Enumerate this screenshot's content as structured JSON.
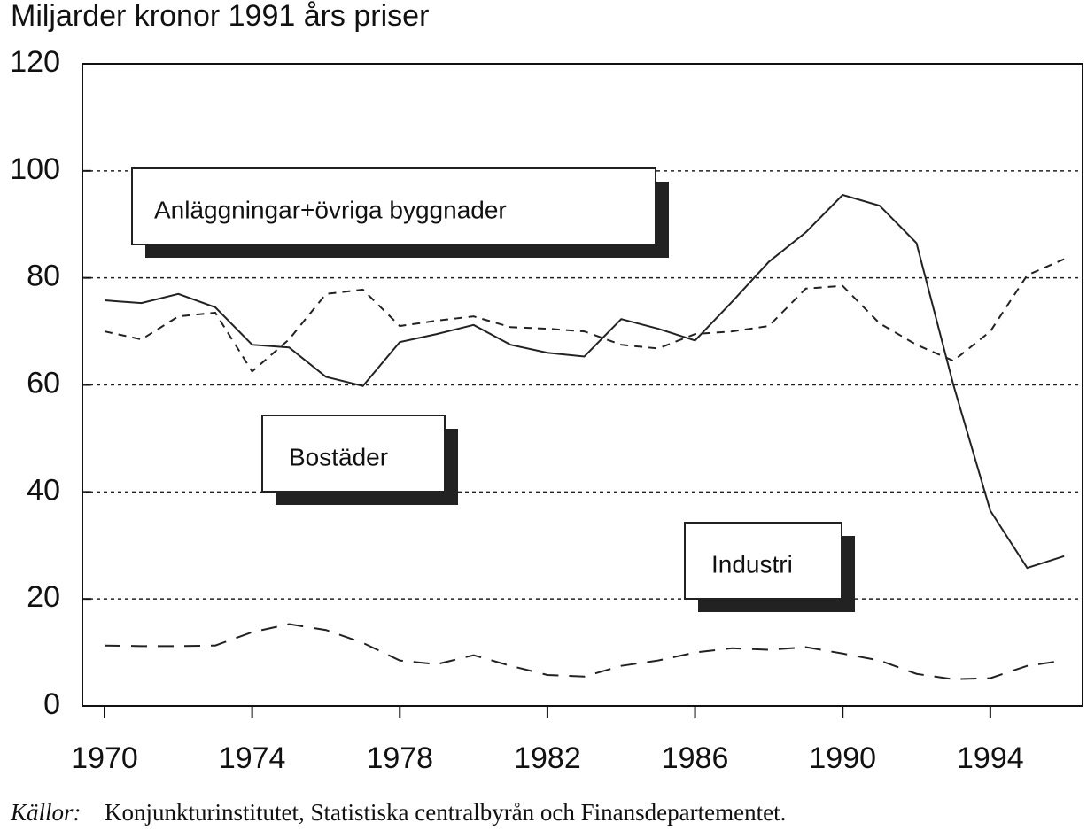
{
  "chart_data": {
    "type": "line",
    "title": "Miljarder kronor 1991 års priser",
    "source_label": "Källor:",
    "source": "Konjunkturinstitutet, Statistiska centralbyrån och Finansdepartementet.",
    "x": [
      1970,
      1971,
      1972,
      1973,
      1974,
      1975,
      1976,
      1977,
      1978,
      1979,
      1980,
      1981,
      1982,
      1983,
      1984,
      1985,
      1986,
      1987,
      1988,
      1989,
      1990,
      1991,
      1992,
      1993,
      1994,
      1995,
      1996
    ],
    "xlim": [
      1969.4,
      1996.5
    ],
    "xticks": [
      1970,
      1974,
      1978,
      1982,
      1986,
      1990,
      1994
    ],
    "ylim": [
      0,
      120
    ],
    "yticks": [
      0,
      20,
      40,
      60,
      80,
      100,
      120
    ],
    "grid": true,
    "series": [
      {
        "name": "Anläggningar+övriga byggnader",
        "color": "#222222",
        "style": "dashed",
        "values": [
          70,
          68.5,
          72.8,
          73.5,
          62.5,
          68.5,
          77,
          77.8,
          71,
          72,
          72.8,
          70.8,
          70.5,
          70,
          67.5,
          66.8,
          69.5,
          70,
          71,
          78,
          78.5,
          71.5,
          67.5,
          64.5,
          70,
          80.5,
          83.5
        ]
      },
      {
        "name": "Bostäder",
        "color": "#222222",
        "style": "solid",
        "values": [
          75.8,
          75.3,
          77,
          74.5,
          67.5,
          67,
          61.5,
          59.8,
          68,
          69.5,
          71.2,
          67.5,
          66,
          65.3,
          72.3,
          70.5,
          68.3,
          75.5,
          83,
          88.5,
          95.5,
          93.5,
          86.5,
          60,
          36.5,
          25.8,
          28
        ]
      },
      {
        "name": "Industri",
        "color": "#222222",
        "style": "longdash",
        "values": [
          11.3,
          11.2,
          11.2,
          11.3,
          13.8,
          15.3,
          14.2,
          11.8,
          8.5,
          7.8,
          9.5,
          7.5,
          5.8,
          5.5,
          7.5,
          8.5,
          10,
          10.8,
          10.5,
          11,
          9.8,
          8.5,
          6,
          5,
          5.2,
          7.5,
          8.5
        ]
      }
    ]
  }
}
